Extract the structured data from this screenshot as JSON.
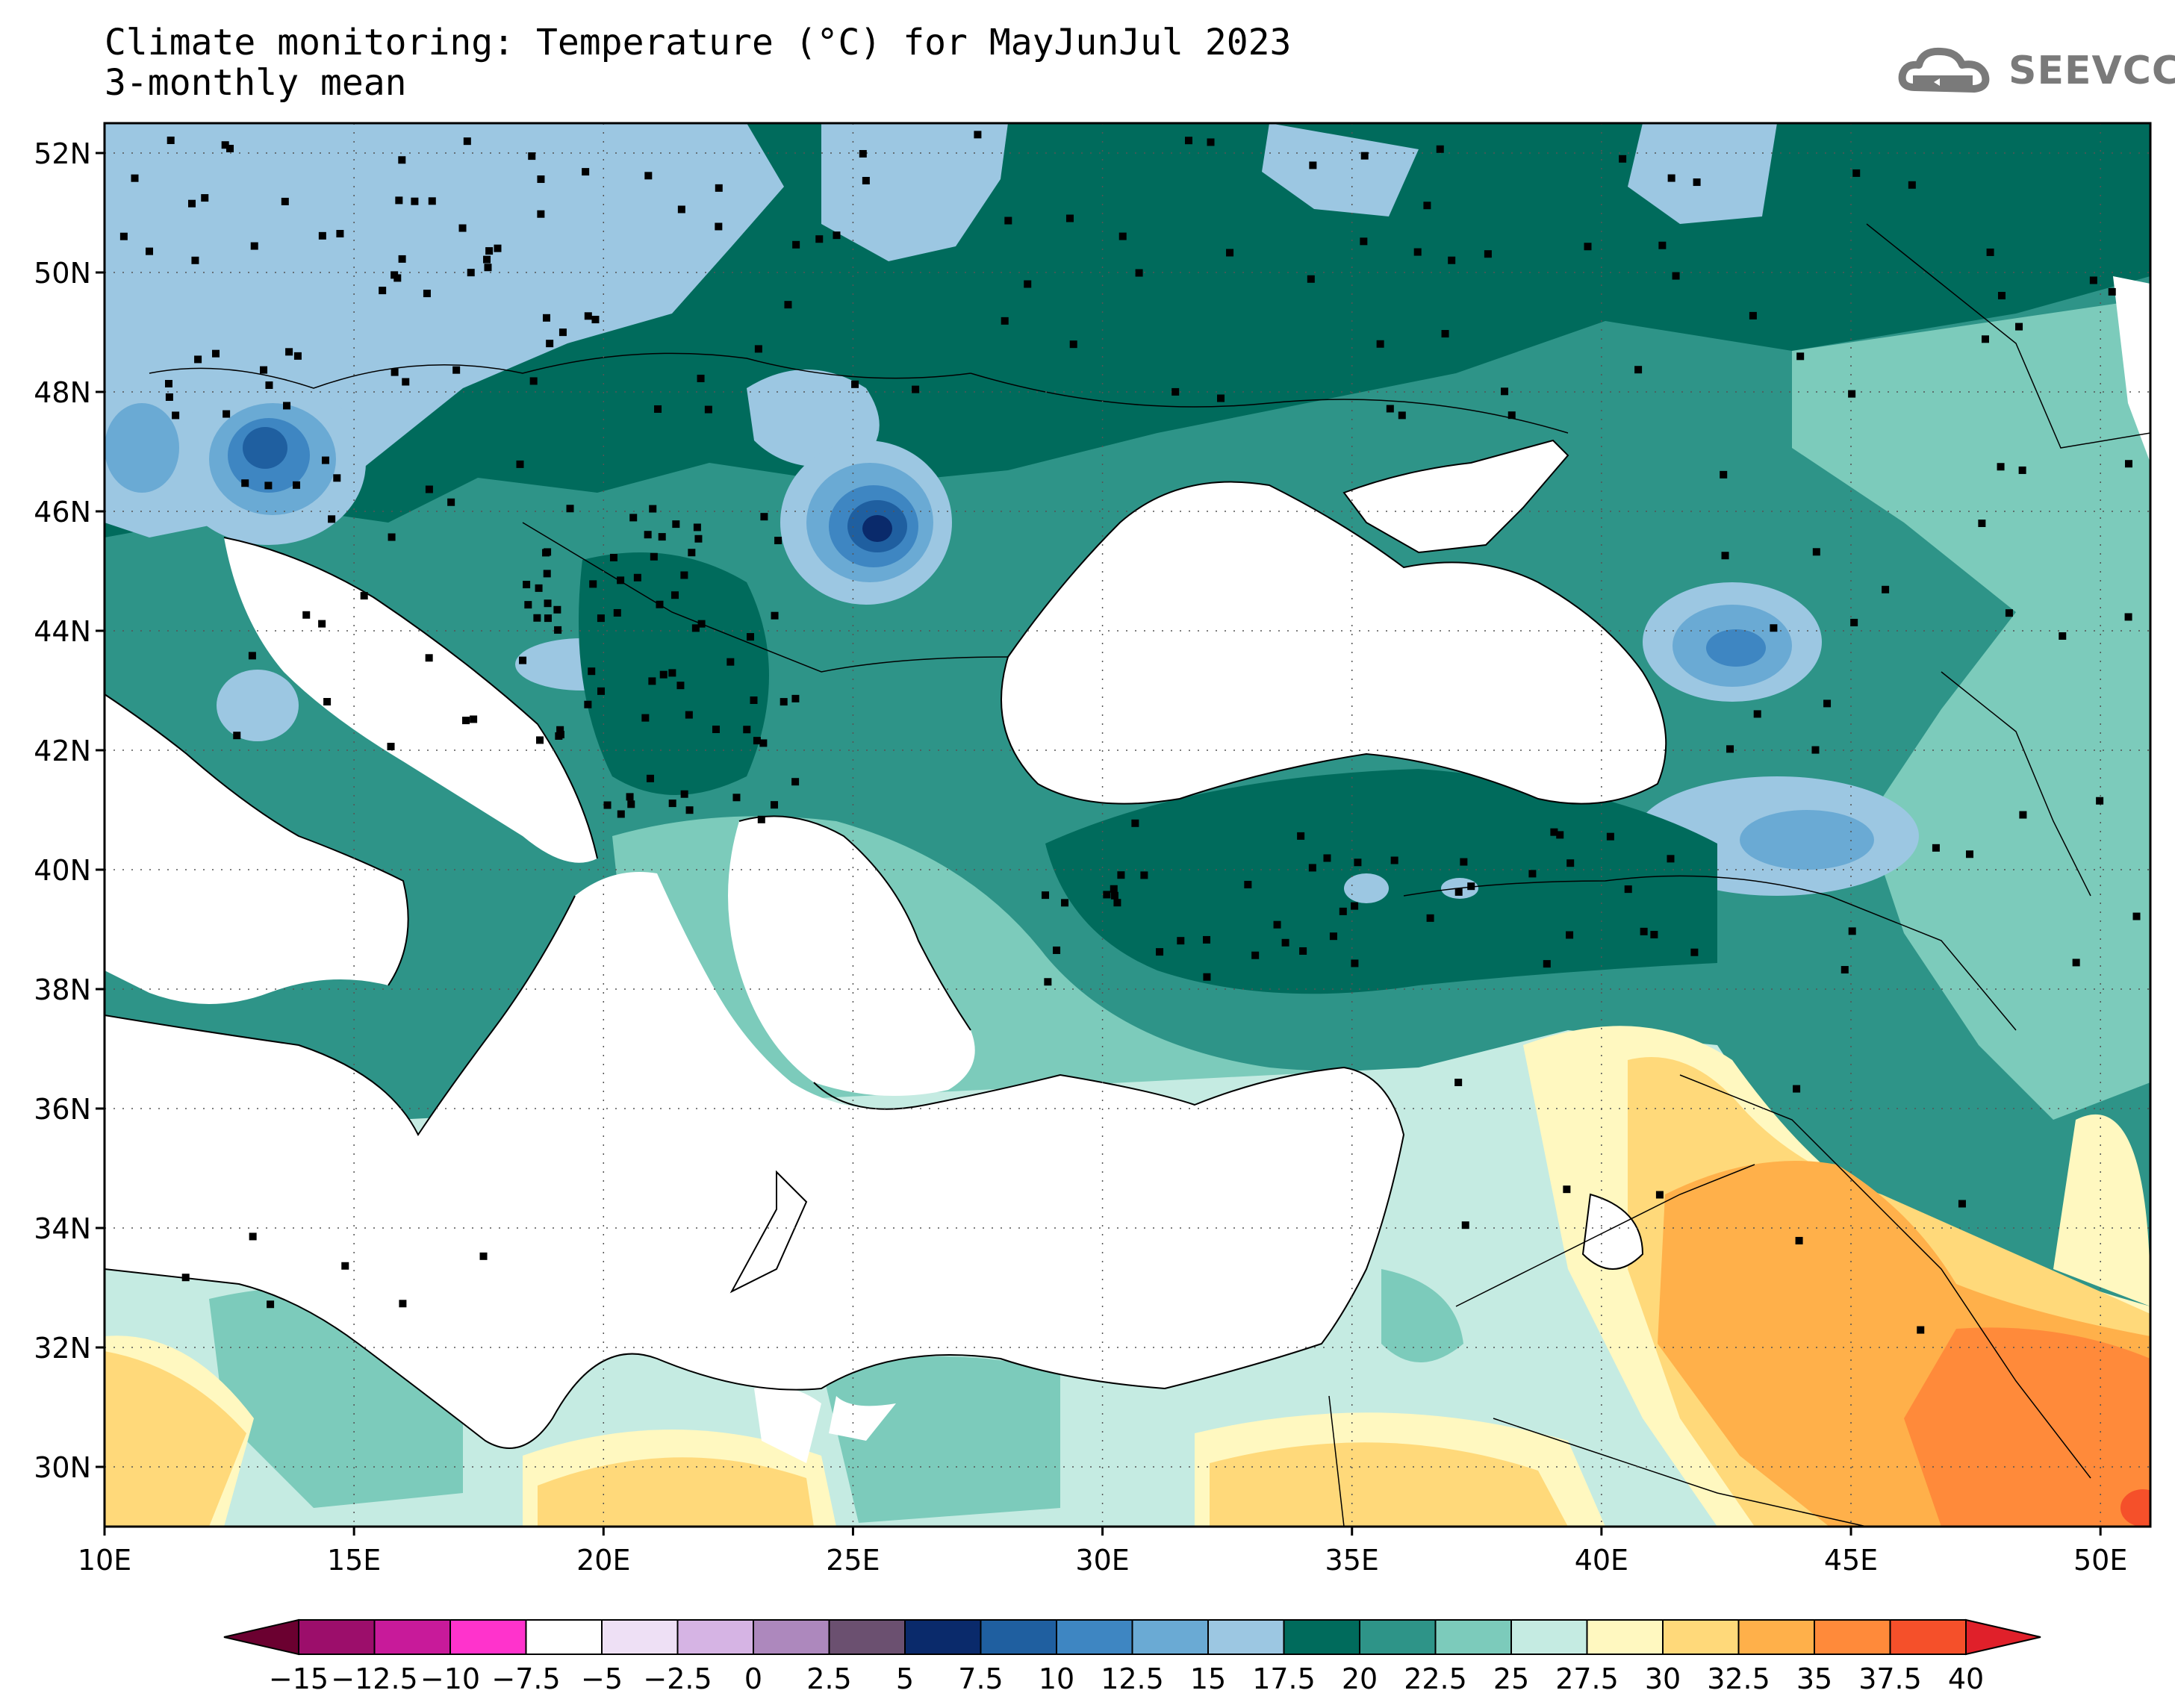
{
  "header": {
    "title_line1": "Climate monitoring: Temperature (°C) for MayJunJul 2023",
    "title_line2": "3-monthly mean",
    "logo_text": "SEEVCCC",
    "logo_icon": "cloud-icon"
  },
  "map": {
    "lon_range": [
      10,
      51
    ],
    "lat_range": [
      29,
      52.5
    ],
    "lat_labels": [
      "52N",
      "50N",
      "48N",
      "46N",
      "44N",
      "42N",
      "40N",
      "38N",
      "36N",
      "34N",
      "32N",
      "30N"
    ],
    "lon_labels": [
      "10E",
      "15E",
      "20E",
      "25E",
      "30E",
      "35E",
      "40E",
      "45E",
      "50E"
    ],
    "grid": "dotted",
    "station_markers": "black-squares"
  },
  "colorbar": {
    "labels": [
      "−15",
      "−12.5",
      "−10",
      "−7.5",
      "−5",
      "−2.5",
      "0",
      "2.5",
      "5",
      "7.5",
      "10",
      "12.5",
      "15",
      "17.5",
      "20",
      "22.5",
      "25",
      "27.5",
      "30",
      "32.5",
      "35",
      "37.5",
      "40"
    ],
    "colors": [
      "#7a0a4a",
      "#9c0e6b",
      "#c81a9a",
      "#ff33cc",
      "#ffffff",
      "#eee0f5",
      "#d6b4e4",
      "#ad88bd",
      "#6b5070",
      "#0a2a6b",
      "#1f5fa0",
      "#3e86c2",
      "#6aaad4",
      "#9cc7e2",
      "#006b5c",
      "#2e9488",
      "#7ccbbb",
      "#c5ebe2",
      "#fff8c0",
      "#ffd97a",
      "#ffb04a",
      "#ff8a3a",
      "#f5502a"
    ],
    "arrow_low_color": "#6b0030",
    "arrow_high_color": "#e0202a"
  }
}
